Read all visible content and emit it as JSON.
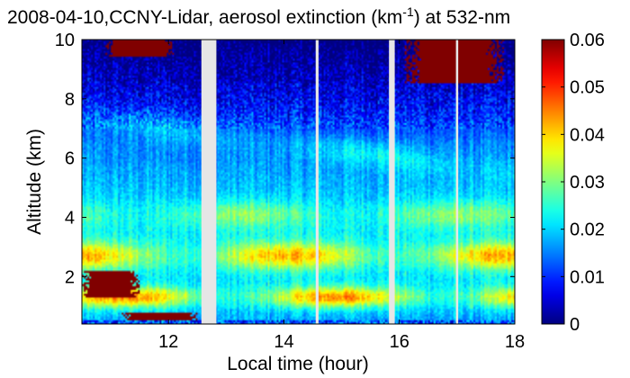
{
  "chart_data": {
    "type": "heatmap",
    "title": {
      "prefix": "2008-04-10,CCNY-Lidar, aerosol extinction (km",
      "superscript": "-1",
      "suffix": ") at 532-nm"
    },
    "xlabel": "Local time (hour)",
    "ylabel": "Altitude (km)",
    "xlim": [
      10.5,
      18
    ],
    "ylim": [
      0.4,
      10
    ],
    "xticks": [
      12,
      14,
      16,
      18
    ],
    "yticks": [
      2,
      4,
      6,
      8,
      10
    ],
    "grid": false,
    "colorbar": {
      "range": [
        0,
        0.06
      ],
      "ticks": [
        "0",
        "0.01",
        "0.02",
        "0.03",
        "0.04",
        "0.05",
        "0.06"
      ],
      "colormap": "jet",
      "placement": "right"
    },
    "data_gaps_hours": [
      [
        12.57,
        12.83
      ],
      [
        14.55,
        14.6
      ],
      [
        15.82,
        15.92
      ],
      [
        16.98,
        17.02
      ]
    ],
    "aerosol_layers_km": [
      {
        "feature": "boundary-layer-peak",
        "altitude": 1.3,
        "extinction": 0.04
      },
      {
        "feature": "residual-layer",
        "altitude": 2.7,
        "extinction": 0.035
      },
      {
        "feature": "mid-layer",
        "altitude": 4.1,
        "extinction": 0.025
      },
      {
        "feature": "upper-layer",
        "altitude": 6.5,
        "extinction": 0.022
      }
    ],
    "cloud_regions": [
      {
        "x": [
          10.9,
          12.1
        ],
        "y": [
          9.4,
          10
        ],
        "extinction": 0.06
      },
      {
        "x": [
          16.1,
          17.8
        ],
        "y": [
          8.5,
          10
        ],
        "extinction": 0.06
      },
      {
        "x": [
          10.5,
          11.5
        ],
        "y": [
          1.3,
          2.2
        ],
        "extinction": 0.06
      },
      {
        "x": [
          11.2,
          12.5
        ],
        "y": [
          0.4,
          0.8
        ],
        "extinction": 0.06
      }
    ]
  },
  "colors": {
    "gap": "#e6e6e6",
    "background": "#ffffff"
  }
}
